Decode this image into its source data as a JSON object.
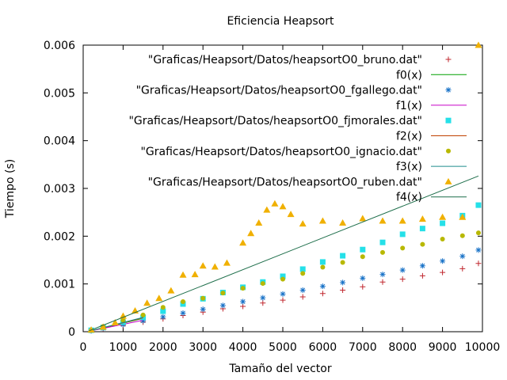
{
  "chart_data": {
    "type": "scatter",
    "title": "Eficiencia Heapsort",
    "xlabel": "Tamaño del vector",
    "ylabel": "Tiempo (s)",
    "xlim": [
      0,
      10000
    ],
    "ylim": [
      0,
      0.006
    ],
    "x_ticks": [
      0,
      1000,
      2000,
      3000,
      4000,
      5000,
      6000,
      7000,
      8000,
      9000,
      10000
    ],
    "y_ticks": [
      0,
      0.001,
      0.002,
      0.003,
      0.004,
      0.005,
      0.006
    ],
    "x_tick_labels": [
      "0",
      "1000",
      "2000",
      "3000",
      "4000",
      "5000",
      "6000",
      "7000",
      "8000",
      "9000",
      "10000"
    ],
    "y_tick_labels": [
      "0",
      "0.001",
      "0.002",
      "0.003",
      "0.004",
      "0.005",
      "0.006"
    ],
    "legend_position": "top-right",
    "series": [
      {
        "name": "\"Graficas/Heapsort/Datos/heapsortO0_bruno.dat\"",
        "kind": "points",
        "marker": "plus",
        "color": "#c0262d",
        "x": [
          200,
          500,
          1000,
          1500,
          2000,
          2500,
          3000,
          3500,
          4000,
          4500,
          5000,
          5500,
          6000,
          6500,
          7000,
          7500,
          8000,
          8500,
          9000,
          9500,
          9900
        ],
        "y": [
          2e-05,
          6e-05,
          0.00013,
          0.0002,
          0.00027,
          0.00034,
          0.00041,
          0.00048,
          0.00053,
          0.0006,
          0.00066,
          0.00073,
          0.0008,
          0.00087,
          0.00094,
          0.00104,
          0.0011,
          0.00117,
          0.00124,
          0.00132,
          0.00143
        ]
      },
      {
        "name": "f0(x)",
        "kind": "line",
        "color": "#00a000",
        "x": [
          150,
          1500
        ],
        "y": [
          1e-05,
          0.00028
        ]
      },
      {
        "name": "\"Graficas/Heapsort/Datos/heapsortO0_fgallego.dat\"",
        "kind": "points",
        "marker": "star",
        "color": "#1a73c8",
        "x": [
          200,
          500,
          1000,
          1500,
          2000,
          2500,
          3000,
          3500,
          4000,
          4500,
          5000,
          5500,
          6000,
          6500,
          7000,
          7500,
          8000,
          8500,
          9000,
          9500,
          9900
        ],
        "y": [
          2e-05,
          7e-05,
          0.00015,
          0.00023,
          0.00031,
          0.00039,
          0.00047,
          0.00055,
          0.00063,
          0.00071,
          0.00079,
          0.00087,
          0.00095,
          0.00103,
          0.00112,
          0.0012,
          0.00129,
          0.00138,
          0.00148,
          0.00158,
          0.00171
        ]
      },
      {
        "name": "f1(x)",
        "kind": "line",
        "color": "#c800c8",
        "x": [
          150,
          1500
        ],
        "y": [
          1e-05,
          0.00024
        ]
      },
      {
        "name": "\"Graficas/Heapsort/Datos/heapsortO0_fjmorales.dat\"",
        "kind": "points",
        "marker": "square",
        "color": "#25e0e8",
        "x": [
          200,
          500,
          1000,
          1500,
          2000,
          2500,
          3000,
          3500,
          4000,
          4500,
          5000,
          5500,
          6000,
          6500,
          7000,
          7500,
          8000,
          8500,
          9000,
          9500,
          9900
        ],
        "y": [
          3e-05,
          9e-05,
          0.0002,
          0.0003,
          0.00043,
          0.00058,
          0.00069,
          0.00082,
          0.00093,
          0.00104,
          0.00116,
          0.00131,
          0.00146,
          0.00159,
          0.00172,
          0.00187,
          0.00204,
          0.00216,
          0.00227,
          0.00243,
          0.00265
        ]
      },
      {
        "name": "f2(x)",
        "kind": "line",
        "color": "#c04000",
        "x": [
          150,
          1500
        ],
        "y": [
          1e-05,
          0.00029
        ]
      },
      {
        "name": "\"Graficas/Heapsort/Datos/heapsortO0_ignacio.dat\"",
        "kind": "points",
        "marker": "circle",
        "color": "#b8b800",
        "x": [
          200,
          500,
          1000,
          1500,
          2000,
          2500,
          3000,
          3500,
          4000,
          4500,
          5000,
          5500,
          6000,
          6500,
          7000,
          7500,
          8000,
          8500,
          9000,
          9500,
          9900
        ],
        "y": [
          3e-05,
          0.00011,
          0.00024,
          0.00035,
          0.00051,
          0.00063,
          0.0007,
          0.00081,
          0.00091,
          0.00101,
          0.0011,
          0.00122,
          0.00135,
          0.00145,
          0.00157,
          0.00166,
          0.00175,
          0.00183,
          0.00194,
          0.00201,
          0.00207
        ]
      },
      {
        "name": "f3(x)",
        "kind": "line",
        "color": "#1f8c8c",
        "x": [
          150,
          1500
        ],
        "y": [
          1e-05,
          0.0003
        ]
      },
      {
        "name": "\"Graficas/Heapsort/Datos/heapsortO0_ruben.dat\"",
        "kind": "points",
        "marker": "triangle",
        "color": "#f0b000",
        "x": [
          200,
          500,
          800,
          1000,
          1300,
          1600,
          1900,
          2200,
          2500,
          2800,
          3000,
          3300,
          3600,
          4000,
          4200,
          4400,
          4600,
          4800,
          5000,
          5200,
          5500,
          6000,
          6500,
          7000,
          7500,
          8000,
          8500,
          9000,
          9500,
          9900
        ],
        "y": [
          4e-05,
          0.0001,
          0.00019,
          0.00033,
          0.00044,
          0.0006,
          0.0007,
          0.00086,
          0.00119,
          0.0012,
          0.00138,
          0.00136,
          0.00144,
          0.00186,
          0.00206,
          0.00228,
          0.00255,
          0.00268,
          0.00262,
          0.00246,
          0.00226,
          0.00232,
          0.00228,
          0.00237,
          0.00232,
          0.00232,
          0.00236,
          0.0024,
          0.0024,
          0.006
        ]
      },
      {
        "name": "f4(x)",
        "kind": "line",
        "color": "#1d6e4a",
        "x": [
          150,
          9900
        ],
        "y": [
          2e-05,
          0.00326
        ]
      }
    ]
  }
}
